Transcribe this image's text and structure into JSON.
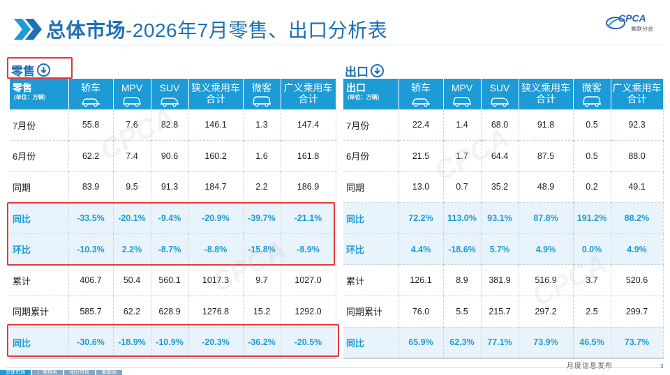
{
  "header": {
    "title_bold": "总体市场",
    "title_rest": "-2026年7月零售、出口分析表",
    "logo_text": "CPCA",
    "logo_sub": "乘联分会"
  },
  "retail": {
    "section_label": "零售",
    "corner_label": "零售",
    "unit": "(单位：万辆)",
    "columns": [
      "轿车",
      "MPV",
      "SUV",
      "狭义乘用车合计",
      "微客",
      "广义乘用车合计"
    ],
    "col_lines": [
      [
        "轿车"
      ],
      [
        "MPV"
      ],
      [
        "SUV"
      ],
      [
        "狭义乘用车",
        "合计"
      ],
      [
        "微客"
      ],
      [
        "广义乘用车",
        "合计"
      ]
    ],
    "rows": [
      {
        "label": "7月份",
        "values": [
          "55.8",
          "7.6",
          "82.8",
          "146.1",
          "1.3",
          "147.4"
        ],
        "pct": false
      },
      {
        "label": "6月份",
        "values": [
          "62.2",
          "7.4",
          "90.6",
          "160.2",
          "1.6",
          "161.8"
        ],
        "pct": false
      },
      {
        "label": "同期",
        "values": [
          "83.9",
          "9.5",
          "91.3",
          "184.7",
          "2.2",
          "186.9"
        ],
        "pct": false
      },
      {
        "label": "同比",
        "values": [
          "-33.5%",
          "-20.1%",
          "-9.4%",
          "-20.9%",
          "-39.7%",
          "-21.1%"
        ],
        "pct": true
      },
      {
        "label": "环比",
        "values": [
          "-10.3%",
          "2.2%",
          "-8.7%",
          "-8.8%",
          "-15.8%",
          "-8.9%"
        ],
        "pct": true
      },
      {
        "label": "累计",
        "values": [
          "406.7",
          "50.4",
          "560.1",
          "1017.3",
          "9.7",
          "1027.0"
        ],
        "pct": false
      },
      {
        "label": "同期累计",
        "values": [
          "585.7",
          "62.2",
          "628.9",
          "1276.8",
          "15.2",
          "1292.0"
        ],
        "pct": false
      },
      {
        "label": "同比",
        "values": [
          "-30.6%",
          "-18.9%",
          "-10.9%",
          "-20.3%",
          "-36.2%",
          "-20.5%"
        ],
        "pct": true
      }
    ]
  },
  "export": {
    "section_label": "出口",
    "corner_label": "出口",
    "unit": "(单位：万辆)",
    "columns": [
      "轿车",
      "MPV",
      "SUV",
      "狭义乘用车合计",
      "微客",
      "广义乘用车合计"
    ],
    "col_lines": [
      [
        "轿车"
      ],
      [
        "MPV"
      ],
      [
        "SUV"
      ],
      [
        "狭义乘用车",
        "合计"
      ],
      [
        "微客"
      ],
      [
        "广义乘用车",
        "合计"
      ]
    ],
    "rows": [
      {
        "label": "7月份",
        "values": [
          "22.4",
          "1.4",
          "68.0",
          "91.8",
          "0.5",
          "92.3"
        ],
        "pct": false
      },
      {
        "label": "6月份",
        "values": [
          "21.5",
          "1.7",
          "64.4",
          "87.5",
          "0.5",
          "88.0"
        ],
        "pct": false
      },
      {
        "label": "同期",
        "values": [
          "13.0",
          "0.7",
          "35.2",
          "48.9",
          "0.2",
          "49.1"
        ],
        "pct": false
      },
      {
        "label": "同比",
        "values": [
          "72.2%",
          "113.0%",
          "93.1%",
          "87.8%",
          "191.2%",
          "88.2%"
        ],
        "pct": true
      },
      {
        "label": "环比",
        "values": [
          "4.4%",
          "-18.6%",
          "5.7%",
          "4.9%",
          "0.0%",
          "4.9%"
        ],
        "pct": true
      },
      {
        "label": "累计",
        "values": [
          "126.1",
          "8.9",
          "381.9",
          "516.9",
          "3.7",
          "520.6"
        ],
        "pct": false
      },
      {
        "label": "同期累计",
        "values": [
          "76.0",
          "5.5",
          "215.7",
          "297.2",
          "2.5",
          "299.7"
        ],
        "pct": false
      },
      {
        "label": "同比",
        "values": [
          "65.9%",
          "62.3%",
          "77.1%",
          "73.9%",
          "46.5%",
          "73.7%"
        ],
        "pct": true
      }
    ]
  },
  "footer": {
    "text": "月度信息发布",
    "page": "3",
    "tabs": [
      "总体市场",
      "厂商排名",
      "细分市场",
      "新能源"
    ]
  },
  "colors": {
    "accent": "#1c9bd6",
    "title": "#1e6fb5",
    "highlight_box": "#e03a3a",
    "pct_row_bg": "#e9f3fb"
  }
}
